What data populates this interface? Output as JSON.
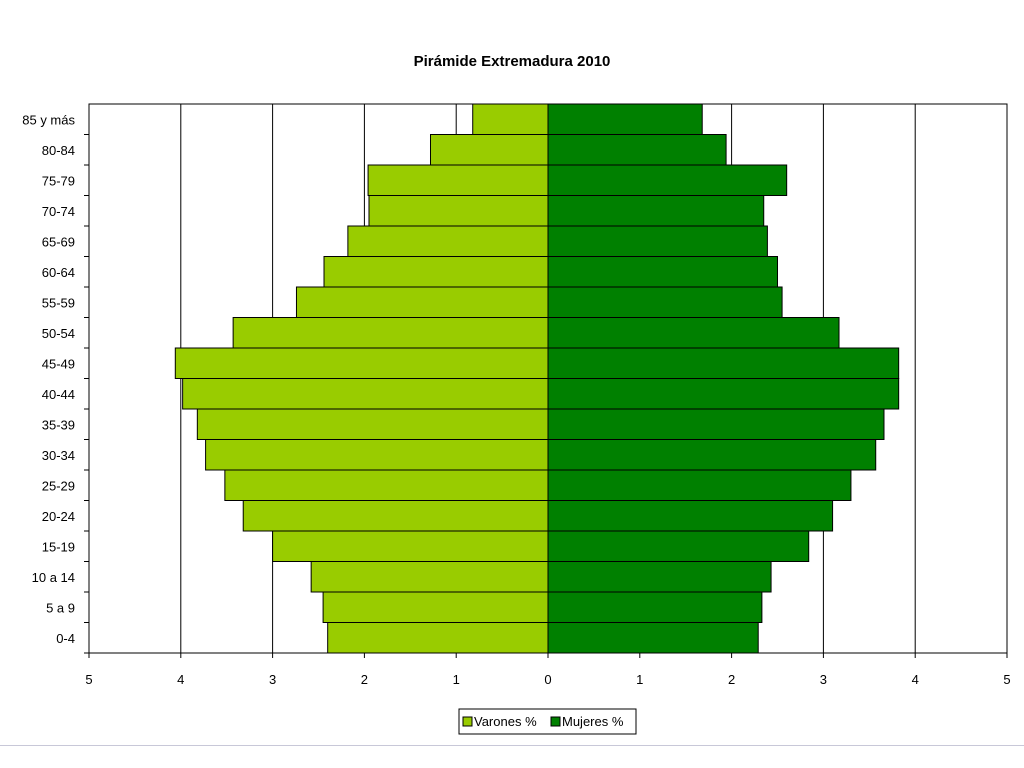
{
  "chart_data": {
    "type": "bar",
    "orientation": "horizontal-population-pyramid",
    "title": "Pirámide Extremadura 2010",
    "categories": [
      "0-4",
      "5 a 9",
      "10 a 14",
      "15-19",
      "20-24",
      "25-29",
      "30-34",
      "35-39",
      "40-44",
      "45-49",
      "50-54",
      "55-59",
      "60-64",
      "65-69",
      "70-74",
      "75-79",
      "80-84",
      "85 y más"
    ],
    "series": [
      {
        "name": "Varones %",
        "color": "#99cc00",
        "side": "left",
        "values": [
          2.4,
          2.45,
          2.58,
          3.0,
          3.32,
          3.52,
          3.73,
          3.82,
          3.98,
          4.06,
          3.43,
          2.74,
          2.44,
          2.18,
          1.95,
          1.96,
          1.28,
          0.82
        ]
      },
      {
        "name": "Mujeres %",
        "color": "#008000",
        "side": "right",
        "values": [
          2.29,
          2.33,
          2.43,
          2.84,
          3.1,
          3.3,
          3.57,
          3.66,
          3.82,
          3.82,
          3.17,
          2.55,
          2.5,
          2.39,
          2.35,
          2.6,
          1.94,
          1.68
        ]
      }
    ],
    "xlim": [
      -5,
      5
    ],
    "x_ticks": [
      5,
      4,
      3,
      2,
      1,
      0,
      1,
      2,
      3,
      4,
      5
    ],
    "grid": "vertical",
    "legend": "bottom-center",
    "bar_outline": "#000000"
  }
}
